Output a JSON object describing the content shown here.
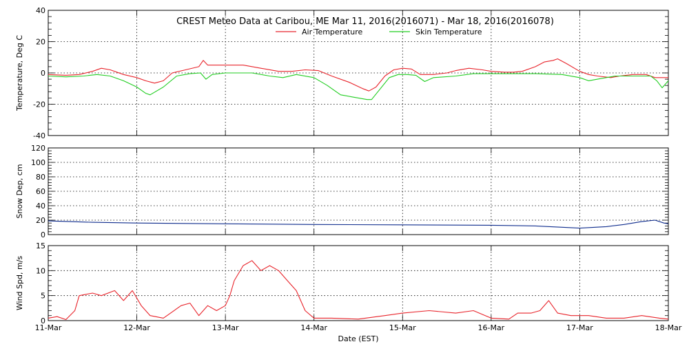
{
  "chart_data": {
    "type": "line",
    "title": "CREST Meteo Data at Caribou, ME   Mar 11, 2016(2016071) - Mar 18, 2016(2016078)",
    "xlabel": "Date (EST)",
    "x_ticks": [
      "11-Mar",
      "12-Mar",
      "13-Mar",
      "14-Mar",
      "15-Mar",
      "16-Mar",
      "17-Mar",
      "18-Mar"
    ],
    "xlim_days": [
      0,
      7
    ],
    "grid": true,
    "legend_position": "top-center",
    "panels": [
      {
        "ylabel": "Temperature, Deg C",
        "ylim": [
          -40,
          40
        ],
        "y_ticks": [
          -40,
          -20,
          0,
          20,
          40
        ],
        "series": [
          {
            "name": "Air Temperature",
            "color": "#e8232a",
            "points": [
              [
                0.0,
                -1
              ],
              [
                0.2,
                -1.5
              ],
              [
                0.35,
                -1
              ],
              [
                0.5,
                1
              ],
              [
                0.6,
                3
              ],
              [
                0.7,
                2
              ],
              [
                0.85,
                -1
              ],
              [
                1.0,
                -3
              ],
              [
                1.1,
                -5
              ],
              [
                1.2,
                -6.5
              ],
              [
                1.3,
                -5
              ],
              [
                1.4,
                0
              ],
              [
                1.55,
                2
              ],
              [
                1.7,
                4
              ],
              [
                1.75,
                8
              ],
              [
                1.8,
                5
              ],
              [
                2.0,
                5
              ],
              [
                2.2,
                5
              ],
              [
                2.4,
                3
              ],
              [
                2.6,
                1
              ],
              [
                2.75,
                1
              ],
              [
                2.9,
                2
              ],
              [
                3.05,
                1.5
              ],
              [
                3.2,
                -2
              ],
              [
                3.4,
                -6
              ],
              [
                3.55,
                -10
              ],
              [
                3.62,
                -11.5
              ],
              [
                3.7,
                -9
              ],
              [
                3.8,
                -2
              ],
              [
                3.9,
                2
              ],
              [
                4.0,
                3
              ],
              [
                4.1,
                2.5
              ],
              [
                4.2,
                -1
              ],
              [
                4.35,
                -1
              ],
              [
                4.5,
                0
              ],
              [
                4.6,
                1.5
              ],
              [
                4.75,
                3
              ],
              [
                4.9,
                2
              ],
              [
                5.0,
                1
              ],
              [
                5.15,
                0.5
              ],
              [
                5.25,
                0.5
              ],
              [
                5.35,
                1
              ],
              [
                5.5,
                4
              ],
              [
                5.6,
                7
              ],
              [
                5.7,
                8
              ],
              [
                5.75,
                9
              ],
              [
                5.85,
                6
              ],
              [
                6.0,
                1
              ],
              [
                6.1,
                -1
              ],
              [
                6.2,
                -2
              ],
              [
                6.35,
                -3
              ],
              [
                6.45,
                -2
              ],
              [
                6.6,
                -1
              ],
              [
                6.75,
                -1
              ],
              [
                6.85,
                -3
              ],
              [
                6.95,
                -3
              ],
              [
                7.0,
                -3
              ]
            ]
          },
          {
            "name": "Skin Temperature",
            "color": "#1fcd1f",
            "points": [
              [
                0.0,
                -2
              ],
              [
                0.2,
                -2.5
              ],
              [
                0.4,
                -2
              ],
              [
                0.55,
                -1
              ],
              [
                0.7,
                -2
              ],
              [
                0.85,
                -5
              ],
              [
                1.0,
                -9
              ],
              [
                1.1,
                -13
              ],
              [
                1.15,
                -14
              ],
              [
                1.3,
                -9
              ],
              [
                1.45,
                -2
              ],
              [
                1.6,
                -0.5
              ],
              [
                1.72,
                0
              ],
              [
                1.78,
                -4
              ],
              [
                1.85,
                -1
              ],
              [
                2.0,
                0
              ],
              [
                2.3,
                0
              ],
              [
                2.5,
                -2
              ],
              [
                2.65,
                -3
              ],
              [
                2.8,
                -1
              ],
              [
                3.0,
                -3
              ],
              [
                3.15,
                -8
              ],
              [
                3.3,
                -14
              ],
              [
                3.45,
                -15.5
              ],
              [
                3.6,
                -17
              ],
              [
                3.65,
                -17
              ],
              [
                3.75,
                -10
              ],
              [
                3.85,
                -3
              ],
              [
                3.95,
                -1
              ],
              [
                4.05,
                -1
              ],
              [
                4.15,
                -1.5
              ],
              [
                4.25,
                -5.5
              ],
              [
                4.35,
                -3
              ],
              [
                4.6,
                -2
              ],
              [
                4.8,
                -0.5
              ],
              [
                5.0,
                -0.5
              ],
              [
                5.5,
                -0.5
              ],
              [
                5.8,
                -1
              ],
              [
                6.0,
                -3
              ],
              [
                6.1,
                -5
              ],
              [
                6.2,
                -4
              ],
              [
                6.4,
                -2
              ],
              [
                6.6,
                -2
              ],
              [
                6.8,
                -2
              ],
              [
                6.87,
                -5
              ],
              [
                6.93,
                -9.5
              ],
              [
                7.0,
                -5
              ]
            ]
          }
        ]
      },
      {
        "ylabel": "Snow Dep, cm",
        "ylim": [
          0,
          120
        ],
        "y_ticks": [
          0,
          20,
          40,
          60,
          80,
          100,
          120
        ],
        "series": [
          {
            "name": "Snow Depth",
            "color": "#0c2a8c",
            "points": [
              [
                0.0,
                19
              ],
              [
                0.5,
                17
              ],
              [
                1.0,
                16
              ],
              [
                2.0,
                15
              ],
              [
                3.0,
                14
              ],
              [
                4.0,
                13.5
              ],
              [
                5.0,
                13
              ],
              [
                5.5,
                12
              ],
              [
                6.0,
                9
              ],
              [
                6.3,
                11
              ],
              [
                6.5,
                14
              ],
              [
                6.7,
                18
              ],
              [
                6.85,
                20
              ],
              [
                6.95,
                16
              ],
              [
                7.0,
                15
              ]
            ]
          }
        ]
      },
      {
        "ylabel": "Wind Spd, m/s",
        "ylim": [
          0,
          15
        ],
        "y_ticks": [
          0,
          5,
          10,
          15
        ],
        "series": [
          {
            "name": "Wind Speed",
            "color": "#e8232a",
            "points": [
              [
                0.0,
                0.5
              ],
              [
                0.1,
                0.8
              ],
              [
                0.2,
                0.2
              ],
              [
                0.3,
                2
              ],
              [
                0.35,
                5
              ],
              [
                0.5,
                5.5
              ],
              [
                0.6,
                5
              ],
              [
                0.75,
                6
              ],
              [
                0.85,
                4
              ],
              [
                0.95,
                6
              ],
              [
                1.05,
                3
              ],
              [
                1.15,
                1
              ],
              [
                1.3,
                0.5
              ],
              [
                1.5,
                3
              ],
              [
                1.6,
                3.5
              ],
              [
                1.7,
                1
              ],
              [
                1.8,
                3
              ],
              [
                1.9,
                2
              ],
              [
                2.0,
                3
              ],
              [
                2.05,
                5
              ],
              [
                2.1,
                8
              ],
              [
                2.2,
                11
              ],
              [
                2.3,
                12
              ],
              [
                2.4,
                10
              ],
              [
                2.5,
                11
              ],
              [
                2.6,
                10
              ],
              [
                2.7,
                8
              ],
              [
                2.8,
                6
              ],
              [
                2.9,
                2
              ],
              [
                3.0,
                0.5
              ],
              [
                3.2,
                0.5
              ],
              [
                3.5,
                0.3
              ],
              [
                3.8,
                1
              ],
              [
                4.0,
                1.5
              ],
              [
                4.3,
                2
              ],
              [
                4.6,
                1.5
              ],
              [
                4.8,
                2
              ],
              [
                5.0,
                0.5
              ],
              [
                5.2,
                0.3
              ],
              [
                5.3,
                1.5
              ],
              [
                5.45,
                1.5
              ],
              [
                5.55,
                2
              ],
              [
                5.65,
                4
              ],
              [
                5.75,
                1.5
              ],
              [
                5.9,
                1
              ],
              [
                6.1,
                1
              ],
              [
                6.3,
                0.5
              ],
              [
                6.5,
                0.5
              ],
              [
                6.7,
                1
              ],
              [
                6.9,
                0.5
              ],
              [
                7.0,
                0.3
              ]
            ]
          }
        ]
      }
    ]
  }
}
